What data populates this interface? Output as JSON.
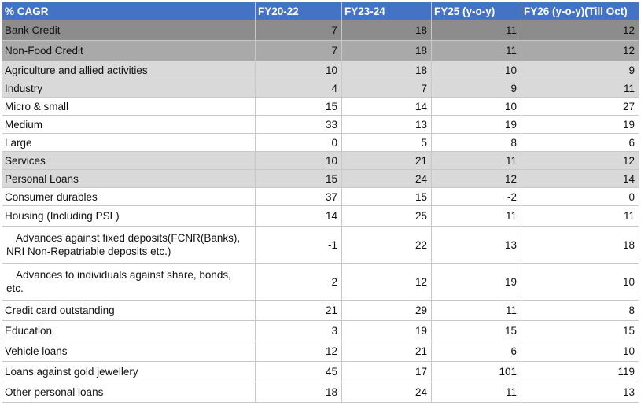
{
  "table": {
    "headers": [
      "% CAGR",
      "FY20-22",
      "FY23-24",
      "FY25 (y-o-y)",
      "FY26 (y-o-y)(Till Oct)"
    ],
    "rows": [
      {
        "label": "Bank Credit",
        "values": [
          "7",
          "18",
          "11",
          "12"
        ]
      },
      {
        "label": "Non-Food Credit",
        "values": [
          "7",
          "18",
          "11",
          "12"
        ]
      },
      {
        "label": "Agriculture and allied activities",
        "values": [
          "10",
          "18",
          "10",
          "9"
        ]
      },
      {
        "label": "Industry",
        "values": [
          "4",
          "7",
          "9",
          "11"
        ]
      },
      {
        "label": "Micro & small",
        "values": [
          "15",
          "14",
          "10",
          "27"
        ]
      },
      {
        "label": "Medium",
        "values": [
          "33",
          "13",
          "19",
          "19"
        ]
      },
      {
        "label": "Large",
        "values": [
          "0",
          "5",
          "8",
          "6"
        ]
      },
      {
        "label": "Services",
        "values": [
          "10",
          "21",
          "11",
          "12"
        ]
      },
      {
        "label": "Personal Loans",
        "values": [
          "15",
          "24",
          "12",
          "14"
        ]
      },
      {
        "label": "Consumer durables",
        "values": [
          "37",
          "15",
          "-2",
          "0"
        ]
      },
      {
        "label": "Housing (Including PSL)",
        "values": [
          "14",
          "25",
          "11",
          "11"
        ]
      },
      {
        "label_line1": "Advances against fixed deposits(FCNR(Banks),",
        "label_line2": "NRI Non-Repatriable deposits etc.)",
        "values": [
          "-1",
          "22",
          "13",
          "18"
        ]
      },
      {
        "label_line1": "Advances to individuals against share, bonds,",
        "label_line2": "etc.",
        "values": [
          "2",
          "12",
          "19",
          "10"
        ]
      },
      {
        "label": "Credit card outstanding",
        "values": [
          "21",
          "29",
          "11",
          "8"
        ]
      },
      {
        "label": "Education",
        "values": [
          "3",
          "19",
          "15",
          "15"
        ]
      },
      {
        "label": "Vehicle loans",
        "values": [
          "12",
          "21",
          "6",
          "10"
        ]
      },
      {
        "label": "Loans against gold jewellery",
        "values": [
          "45",
          "17",
          "101",
          "119"
        ]
      },
      {
        "label": "Other personal loans",
        "values": [
          "18",
          "24",
          "11",
          "13"
        ]
      }
    ]
  },
  "colors": {
    "header_bg": "#4472c4",
    "dark_row_bg": "#8c8c8c",
    "mid_row_bg": "#a9a9a9",
    "light_row_bg": "#d9d9d9"
  }
}
